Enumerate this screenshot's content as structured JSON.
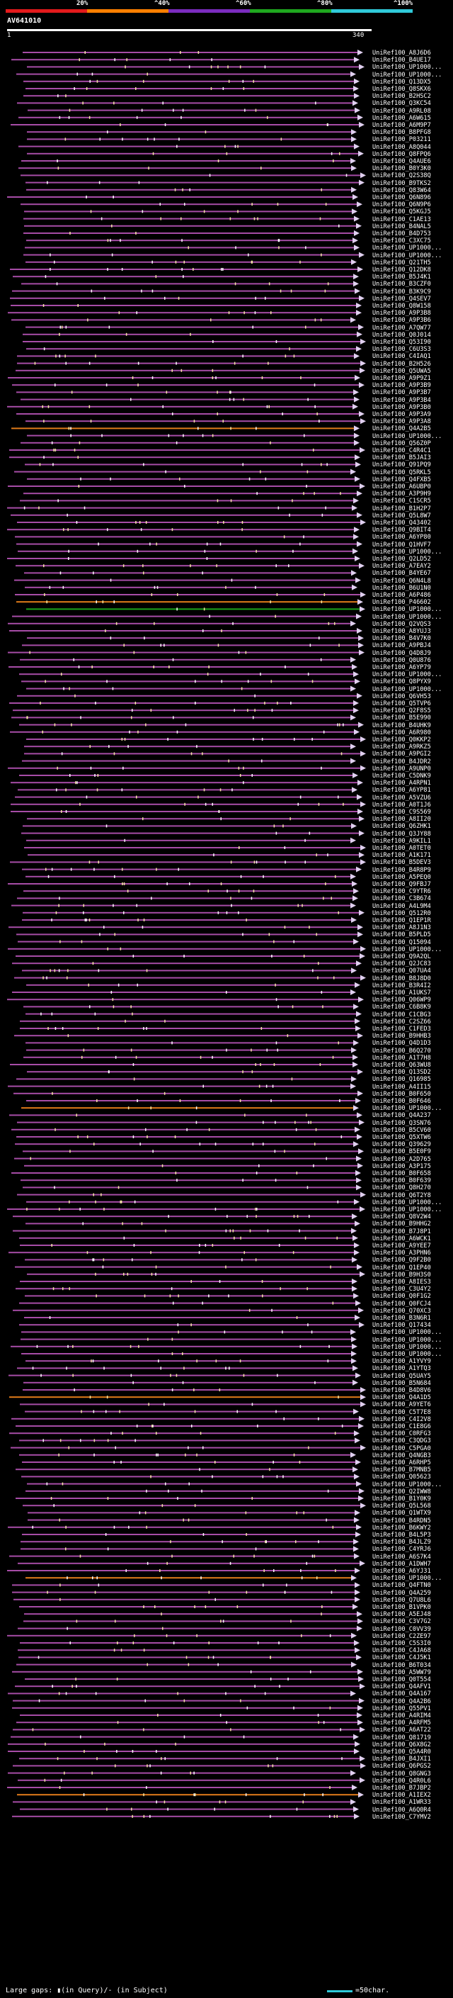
{
  "chart_data": {
    "type": "alignment-overview",
    "title": "AV641010",
    "scale_ticks": [
      "20%",
      "^40%",
      "^60%",
      "^80%",
      "^100%"
    ],
    "scale_colors": [
      "#e31a1c",
      "#ff7f00",
      "#7b2cbf",
      "#1fa81f",
      "#30c9d9"
    ],
    "query_start": "1",
    "query_end": "340",
    "footer_legend": "Large gaps: ▮(in Query)/‐ (in Subject)",
    "footer_scale": "=50char.",
    "row_colors": {
      "default": "#a64ca6",
      "orange": "#e07b1a",
      "green": "#1aa31a"
    },
    "hits": [
      {
        "id": "UniRef100_A8J6D6",
        "c": "p"
      },
      {
        "id": "UniRef100_B4UE17",
        "c": "p"
      },
      {
        "id": "UniRef100_UP1000...",
        "c": "p"
      },
      {
        "id": "UniRef100_UP1000...",
        "c": "p"
      },
      {
        "id": "UniRef100_Q13DX5",
        "c": "p"
      },
      {
        "id": "UniRef100_Q8SKX6",
        "c": "p"
      },
      {
        "id": "UniRef100_B2HSC2",
        "c": "p"
      },
      {
        "id": "UniRef100_Q3KC54",
        "c": "p"
      },
      {
        "id": "UniRef100_A9RL08",
        "c": "p"
      },
      {
        "id": "UniRef100_A6W615",
        "c": "p"
      },
      {
        "id": "UniRef100_A6M9P7",
        "c": "p"
      },
      {
        "id": "UniRef100_B8PFG8",
        "c": "p"
      },
      {
        "id": "UniRef100_P03211",
        "c": "p"
      },
      {
        "id": "UniRef100_A8Q044",
        "c": "p"
      },
      {
        "id": "UniRef100_Q8FPQ6",
        "c": "p"
      },
      {
        "id": "UniRef100_Q4AUE6",
        "c": "p"
      },
      {
        "id": "UniRef100_B0Y3K0",
        "c": "p"
      },
      {
        "id": "UniRef100_Q2S38Q",
        "c": "p"
      },
      {
        "id": "UniRef100_B9TKS2",
        "c": "p"
      },
      {
        "id": "UniRef100_Q83W64",
        "c": "p"
      },
      {
        "id": "UniRef100_Q6N896",
        "c": "p"
      },
      {
        "id": "UniRef100_Q6N9P6",
        "c": "p"
      },
      {
        "id": "UniRef100_Q5KGJ5",
        "c": "p"
      },
      {
        "id": "UniRef100_C1AE13",
        "c": "p"
      },
      {
        "id": "UniRef100_B4NAL5",
        "c": "p"
      },
      {
        "id": "UniRef100_B4D753",
        "c": "p"
      },
      {
        "id": "UniRef100_C3XC75",
        "c": "p"
      },
      {
        "id": "UniRef100_UP1000...",
        "c": "p"
      },
      {
        "id": "UniRef100_UP1000...",
        "c": "p"
      },
      {
        "id": "UniRef100_Q21TH5",
        "c": "p"
      },
      {
        "id": "UniRef100_Q12DK8",
        "c": "p"
      },
      {
        "id": "UniRef100_B5J4K1",
        "c": "p"
      },
      {
        "id": "UniRef100_B3CZF0",
        "c": "p"
      },
      {
        "id": "UniRef100_B3K9C9",
        "c": "p"
      },
      {
        "id": "UniRef100_Q4SEV7",
        "c": "p"
      },
      {
        "id": "UniRef100_Q8W158",
        "c": "p"
      },
      {
        "id": "UniRef100_A9P3B8",
        "c": "p"
      },
      {
        "id": "UniRef100_A9P3B6",
        "c": "p"
      },
      {
        "id": "UniRef100_A7QW77",
        "c": "p"
      },
      {
        "id": "UniRef100_Q0J014",
        "c": "p"
      },
      {
        "id": "UniRef100_Q53I90",
        "c": "p"
      },
      {
        "id": "UniRef100_C6U3S3",
        "c": "p"
      },
      {
        "id": "UniRef100_C4IAQ1",
        "c": "p"
      },
      {
        "id": "UniRef100_B2H526",
        "c": "p"
      },
      {
        "id": "UniRef100_Q5UWA5",
        "c": "p"
      },
      {
        "id": "UniRef100_A9P9Z1",
        "c": "p"
      },
      {
        "id": "UniRef100_A9P3B9",
        "c": "p"
      },
      {
        "id": "UniRef100_A9P3B7",
        "c": "p"
      },
      {
        "id": "UniRef100_A9P3B4",
        "c": "p"
      },
      {
        "id": "UniRef100_A9P3B0",
        "c": "p"
      },
      {
        "id": "UniRef100_A9P3A9",
        "c": "p"
      },
      {
        "id": "UniRef100_A9P3A8",
        "c": "p"
      },
      {
        "id": "UniRef100_Q4A2B5",
        "c": "o"
      },
      {
        "id": "UniRef100_UP1000...",
        "c": "p"
      },
      {
        "id": "UniRef100_Q56Z0P",
        "c": "p"
      },
      {
        "id": "UniRef100_C4R4C1",
        "c": "p"
      },
      {
        "id": "UniRef100_B5JAI3",
        "c": "p"
      },
      {
        "id": "UniRef100_Q91PQ9",
        "c": "p"
      },
      {
        "id": "UniRef100_Q5RKL5",
        "c": "p"
      },
      {
        "id": "UniRef100_Q4FXB5",
        "c": "p"
      },
      {
        "id": "UniRef100_A6UBP0",
        "c": "p"
      },
      {
        "id": "UniRef100_A3P9H9",
        "c": "p"
      },
      {
        "id": "UniRef100_C1SCR5",
        "c": "p"
      },
      {
        "id": "UniRef100_B1H2P7",
        "c": "p"
      },
      {
        "id": "UniRef100_Q5L8W7",
        "c": "p"
      },
      {
        "id": "UniRef100_Q43402",
        "c": "p"
      },
      {
        "id": "UniRef100_Q9BIT4",
        "c": "p"
      },
      {
        "id": "UniRef100_A6YP80",
        "c": "p"
      },
      {
        "id": "UniRef100_Q1HVF7",
        "c": "p"
      },
      {
        "id": "UniRef100_UP1000...",
        "c": "p"
      },
      {
        "id": "UniRef100_Q2LD52",
        "c": "p"
      },
      {
        "id": "UniRef100_A7EAY2",
        "c": "p"
      },
      {
        "id": "UniRef100_B4YE67",
        "c": "p"
      },
      {
        "id": "UniRef100_Q6N4L8",
        "c": "p"
      },
      {
        "id": "UniRef100_B6U1N0",
        "c": "p"
      },
      {
        "id": "UniRef100_A6P486",
        "c": "p"
      },
      {
        "id": "UniRef100_P46602",
        "c": "o"
      },
      {
        "id": "UniRef100_UP1000...",
        "c": "g"
      },
      {
        "id": "UniRef100_UP1000...",
        "c": "p"
      },
      {
        "id": "UniRef100_Q2VQS3",
        "c": "p"
      },
      {
        "id": "UniRef100_A8YUJ3",
        "c": "p"
      },
      {
        "id": "UniRef100_B4V7K0",
        "c": "p"
      },
      {
        "id": "UniRef100_A9PBJ4",
        "c": "p"
      },
      {
        "id": "UniRef100_Q4D8J9",
        "c": "p"
      },
      {
        "id": "UniRef100_Q0U876",
        "c": "p"
      },
      {
        "id": "UniRef100_A6YP79",
        "c": "p"
      },
      {
        "id": "UniRef100_UP1000...",
        "c": "p"
      },
      {
        "id": "UniRef100_Q8PYX9",
        "c": "p"
      },
      {
        "id": "UniRef100_UP1000...",
        "c": "p"
      },
      {
        "id": "UniRef100_Q6VH53",
        "c": "p"
      },
      {
        "id": "UniRef100_Q5TVP6",
        "c": "p"
      },
      {
        "id": "UniRef100_Q2F8S5",
        "c": "p"
      },
      {
        "id": "UniRef100_B5E990",
        "c": "p"
      },
      {
        "id": "UniRef100_B4UHK9",
        "c": "p"
      },
      {
        "id": "UniRef100_A6R980",
        "c": "p"
      },
      {
        "id": "UniRef100_Q0KKP2",
        "c": "p"
      },
      {
        "id": "UniRef100_A9RKZ5",
        "c": "p"
      },
      {
        "id": "UniRef100_A9PGI2",
        "c": "p"
      },
      {
        "id": "UniRef100_B4JDR2",
        "c": "p"
      },
      {
        "id": "UniRef100_A9UNP0",
        "c": "p"
      },
      {
        "id": "UniRef100_C5DNK9",
        "c": "p"
      },
      {
        "id": "UniRef100_A4RPN1",
        "c": "p"
      },
      {
        "id": "UniRef100_A6YP81",
        "c": "p"
      },
      {
        "id": "UniRef100_A5VZU6",
        "c": "p"
      },
      {
        "id": "UniRef100_A0T1J6",
        "c": "p"
      },
      {
        "id": "UniRef100_C9S569",
        "c": "p"
      },
      {
        "id": "UniRef100_A8II20",
        "c": "p"
      },
      {
        "id": "UniRef100_Q6ZHK1",
        "c": "p"
      },
      {
        "id": "UniRef100_Q3JY88",
        "c": "p"
      },
      {
        "id": "UniRef100_A9KIL1",
        "c": "p"
      },
      {
        "id": "UniRef100_A0TET0",
        "c": "p"
      },
      {
        "id": "UniRef100_A1K171",
        "c": "p"
      },
      {
        "id": "UniRef100_B5DEV3",
        "c": "p"
      },
      {
        "id": "UniRef100_B4R8P9",
        "c": "p"
      },
      {
        "id": "UniRef100_A5PEQ0",
        "c": "p"
      },
      {
        "id": "UniRef100_Q9FBJ7",
        "c": "p"
      },
      {
        "id": "UniRef100_C9YTR6",
        "c": "p"
      },
      {
        "id": "UniRef100_C3B674",
        "c": "p"
      },
      {
        "id": "UniRef100_A4L9M4",
        "c": "p"
      },
      {
        "id": "UniRef100_Q512R0",
        "c": "p"
      },
      {
        "id": "UniRef100_Q1EP1R",
        "c": "p"
      },
      {
        "id": "UniRef100_A8J1N3",
        "c": "p"
      },
      {
        "id": "UniRef100_B5PLD5",
        "c": "p"
      },
      {
        "id": "UniRef100_Q15094",
        "c": "p"
      },
      {
        "id": "UniRef100_UP1000...",
        "c": "p"
      },
      {
        "id": "UniRef100_Q9A2QL",
        "c": "p"
      },
      {
        "id": "UniRef100_Q2JC83",
        "c": "p"
      },
      {
        "id": "UniRef100_Q07UA4",
        "c": "p"
      },
      {
        "id": "UniRef100_B8J8D0",
        "c": "p"
      },
      {
        "id": "UniRef100_B3R4I2",
        "c": "p"
      },
      {
        "id": "UniRef100_A1UKS7",
        "c": "p"
      },
      {
        "id": "UniRef100_Q06WP9",
        "c": "p"
      },
      {
        "id": "UniRef100_C6B8K9",
        "c": "p"
      },
      {
        "id": "UniRef100_C1CBG3",
        "c": "p"
      },
      {
        "id": "UniRef100_C2SZ66",
        "c": "p"
      },
      {
        "id": "UniRef100_C1FED3",
        "c": "p"
      },
      {
        "id": "UniRef100_B9HHB3",
        "c": "p"
      },
      {
        "id": "UniRef100_Q4D1D3",
        "c": "p"
      },
      {
        "id": "UniRef100_B6Q270",
        "c": "p"
      },
      {
        "id": "UniRef100_A1T7H8",
        "c": "p"
      },
      {
        "id": "UniRef100_Q63WU8",
        "c": "p"
      },
      {
        "id": "UniRef100_Q13SD2",
        "c": "p"
      },
      {
        "id": "UniRef100_Q16985",
        "c": "p"
      },
      {
        "id": "UniRef100_A4II15",
        "c": "p"
      },
      {
        "id": "UniRef100_B0F650",
        "c": "p"
      },
      {
        "id": "UniRef100_B0F646",
        "c": "p"
      },
      {
        "id": "UniRef100_UP1000...",
        "c": "o"
      },
      {
        "id": "UniRef100_Q4A237",
        "c": "p"
      },
      {
        "id": "UniRef100_Q3SN76",
        "c": "p"
      },
      {
        "id": "UniRef100_B5CV60",
        "c": "p"
      },
      {
        "id": "UniRef100_Q5XTW6",
        "c": "p"
      },
      {
        "id": "UniRef100_Q39629",
        "c": "p"
      },
      {
        "id": "UniRef100_B5E0F9",
        "c": "p"
      },
      {
        "id": "UniRef100_A2D765",
        "c": "p"
      },
      {
        "id": "UniRef100_A3P175",
        "c": "p"
      },
      {
        "id": "UniRef100_B0F658",
        "c": "p"
      },
      {
        "id": "UniRef100_B0F639",
        "c": "p"
      },
      {
        "id": "UniRef100_Q8H270",
        "c": "p"
      },
      {
        "id": "UniRef100_Q6T2Y8",
        "c": "p"
      },
      {
        "id": "UniRef100_UP1000...",
        "c": "p"
      },
      {
        "id": "UniRef100_UP1000...",
        "c": "p"
      },
      {
        "id": "UniRef100_Q8V2W4",
        "c": "p"
      },
      {
        "id": "UniRef100_B9HHG2",
        "c": "p"
      },
      {
        "id": "UniRef100_B7J8P1",
        "c": "p"
      },
      {
        "id": "UniRef100_A6WCK1",
        "c": "p"
      },
      {
        "id": "UniRef100_A9YEE7",
        "c": "p"
      },
      {
        "id": "UniRef100_A3PHN6",
        "c": "p"
      },
      {
        "id": "UniRef100_Q9F2B0",
        "c": "p"
      },
      {
        "id": "UniRef100_Q1EP40",
        "c": "p"
      },
      {
        "id": "UniRef100_B9H3S0",
        "c": "p"
      },
      {
        "id": "UniRef100_A8IES3",
        "c": "p"
      },
      {
        "id": "UniRef100_C3U4Y2",
        "c": "p"
      },
      {
        "id": "UniRef100_Q0F1G2",
        "c": "p"
      },
      {
        "id": "UniRef100_Q0FCJ4",
        "c": "p"
      },
      {
        "id": "UniRef100_Q70XC3",
        "c": "p"
      },
      {
        "id": "UniRef100_B3N6R1",
        "c": "p"
      },
      {
        "id": "UniRef100_Q17434",
        "c": "p"
      },
      {
        "id": "UniRef100_UP1000...",
        "c": "p"
      },
      {
        "id": "UniRef100_UP1000...",
        "c": "p"
      },
      {
        "id": "UniRef100_UP1000...",
        "c": "p"
      },
      {
        "id": "UniRef100_UP1000...",
        "c": "p"
      },
      {
        "id": "UniRef100_A1YVY9",
        "c": "p"
      },
      {
        "id": "UniRef100_A1YTQ3",
        "c": "p"
      },
      {
        "id": "UniRef100_Q5UAY5",
        "c": "p"
      },
      {
        "id": "UniRef100_B5N684",
        "c": "p"
      },
      {
        "id": "UniRef100_B4D8V6",
        "c": "p"
      },
      {
        "id": "UniRef100_Q4A1D5",
        "c": "o"
      },
      {
        "id": "UniRef100_A9YET6",
        "c": "p"
      },
      {
        "id": "UniRef100_C5T7E8",
        "c": "p"
      },
      {
        "id": "UniRef100_C4I2V8",
        "c": "p"
      },
      {
        "id": "UniRef100_C1E8G6",
        "c": "p"
      },
      {
        "id": "UniRef100_C0RFG3",
        "c": "p"
      },
      {
        "id": "UniRef100_C3QDG3",
        "c": "p"
      },
      {
        "id": "UniRef100_C5PGA0",
        "c": "p"
      },
      {
        "id": "UniRef100_Q4NGB3",
        "c": "p"
      },
      {
        "id": "UniRef100_A6RHP5",
        "c": "p"
      },
      {
        "id": "UniRef100_B7MNB5",
        "c": "p"
      },
      {
        "id": "UniRef100_Q05623",
        "c": "p"
      },
      {
        "id": "UniRef100_UP1000...",
        "c": "p"
      },
      {
        "id": "UniRef100_Q2IWW8",
        "c": "p"
      },
      {
        "id": "UniRef100_B1Y0K9",
        "c": "p"
      },
      {
        "id": "UniRef100_Q5L568",
        "c": "p"
      },
      {
        "id": "UniRef100_Q1WTX9",
        "c": "p"
      },
      {
        "id": "UniRef100_B4RDN5",
        "c": "p"
      },
      {
        "id": "UniRef100_B6KWY2",
        "c": "p"
      },
      {
        "id": "UniRef100_B4L5P3",
        "c": "p"
      },
      {
        "id": "UniRef100_B4JLZ9",
        "c": "p"
      },
      {
        "id": "UniRef100_C4YRJ6",
        "c": "p"
      },
      {
        "id": "UniRef100_A6S7K4",
        "c": "p"
      },
      {
        "id": "UniRef100_A1DWH7",
        "c": "p"
      },
      {
        "id": "UniRef100_A6YJ31",
        "c": "p"
      },
      {
        "id": "UniRef100_UP1000...",
        "c": "o"
      },
      {
        "id": "UniRef100_Q4FTN0",
        "c": "p"
      },
      {
        "id": "UniRef100_Q4A259",
        "c": "p"
      },
      {
        "id": "UniRef100_Q7U8L6",
        "c": "p"
      },
      {
        "id": "UniRef100_B1VPK0",
        "c": "p"
      },
      {
        "id": "UniRef100_A5EJ48",
        "c": "p"
      },
      {
        "id": "UniRef100_C3V7G2",
        "c": "p"
      },
      {
        "id": "UniRef100_C0VV39",
        "c": "p"
      },
      {
        "id": "UniRef100_C2ZE97",
        "c": "p"
      },
      {
        "id": "UniRef100_C5S3I0",
        "c": "p"
      },
      {
        "id": "UniRef100_C4JA68",
        "c": "p"
      },
      {
        "id": "UniRef100_C4J5K1",
        "c": "p"
      },
      {
        "id": "UniRef100_B6T034",
        "c": "p"
      },
      {
        "id": "UniRef100_A5WW79",
        "c": "p"
      },
      {
        "id": "UniRef100_Q0T554",
        "c": "p"
      },
      {
        "id": "UniRef100_Q4AFV1",
        "c": "p"
      },
      {
        "id": "UniRef100_Q4A167",
        "c": "p"
      },
      {
        "id": "UniRef100_Q4A2B6",
        "c": "p"
      },
      {
        "id": "UniRef100_Q55PV1",
        "c": "p"
      },
      {
        "id": "UniRef100_A4RIM4",
        "c": "p"
      },
      {
        "id": "UniRef100_A4RFM5",
        "c": "p"
      },
      {
        "id": "UniRef100_A6AT22",
        "c": "p"
      },
      {
        "id": "UniRef100_Q81719",
        "c": "p"
      },
      {
        "id": "UniRef100_Q6X8G2",
        "c": "p"
      },
      {
        "id": "UniRef100_Q5A4R0",
        "c": "p"
      },
      {
        "id": "UniRef100_B4JXI1",
        "c": "p"
      },
      {
        "id": "UniRef100_Q6PGS2",
        "c": "p"
      },
      {
        "id": "UniRef100_Q8GNG3",
        "c": "p"
      },
      {
        "id": "UniRef100_Q4R0L6",
        "c": "p"
      },
      {
        "id": "UniRef100_B7JBP2",
        "c": "p"
      },
      {
        "id": "UniRef100_A1IEX2",
        "c": "o"
      },
      {
        "id": "UniRef100_A1WR33",
        "c": "p"
      },
      {
        "id": "UniRef100_A6Q0R4",
        "c": "p"
      },
      {
        "id": "UniRef100_C7YMV2",
        "c": "p"
      }
    ]
  }
}
